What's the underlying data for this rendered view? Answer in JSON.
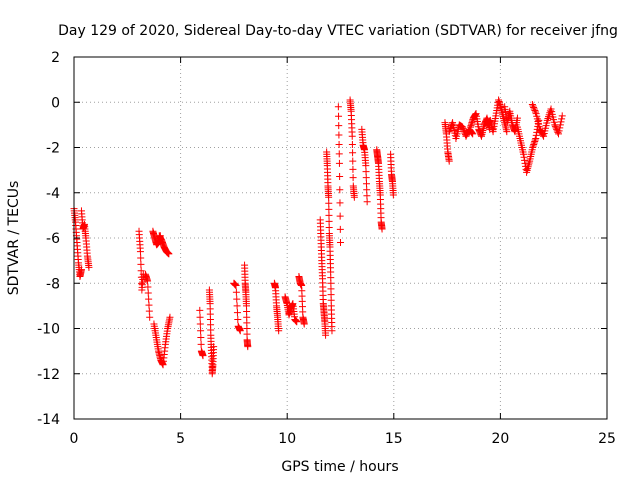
{
  "chart_data": {
    "type": "scatter",
    "title": "Day 129 of 2020, Sidereal Day-to-day VTEC variation (SDTVAR) for receiver jfng",
    "xlabel": "GPS time / hours",
    "ylabel": "SDTVAR / TECUs",
    "xlim": [
      0,
      25
    ],
    "ylim": [
      -14,
      2
    ],
    "xticks": [
      0,
      5,
      10,
      15,
      20,
      25
    ],
    "yticks": [
      2,
      0,
      -2,
      -4,
      -6,
      -8,
      -10,
      -12,
      -14
    ],
    "grid": true,
    "marker": "+",
    "colors": {
      "series": "#ff0000",
      "grid": "#a0a0a0",
      "axes": "#000000"
    },
    "series": [
      {
        "name": "SDTVAR",
        "segments": [
          {
            "x0": 0.0,
            "x1": 0.35,
            "y": [
              -4.7,
              -5.3,
              -6.2,
              -7.1,
              -7.7,
              -7.4
            ]
          },
          {
            "x0": 0.35,
            "x1": 0.7,
            "y": [
              -4.8,
              -5.6,
              -5.4,
              -6.0,
              -6.8,
              -7.3
            ]
          },
          {
            "x0": 3.05,
            "x1": 3.25,
            "y": [
              -5.7,
              -6.6,
              -8.3,
              -7.6
            ]
          },
          {
            "x0": 3.35,
            "x1": 3.55,
            "y": [
              -7.6,
              -7.9,
              -9.5
            ]
          },
          {
            "x0": 3.7,
            "x1": 4.05,
            "y": [
              -5.7,
              -6.0,
              -6.3,
              -6.2,
              -5.9
            ]
          },
          {
            "x0": 4.0,
            "x1": 4.45,
            "y": [
              -5.9,
              -6.1,
              -6.4,
              -6.6,
              -6.7
            ]
          },
          {
            "x0": 3.75,
            "x1": 4.5,
            "y": [
              -9.8,
              -10.4,
              -11.0,
              -11.4,
              -11.6,
              -10.7,
              -10.0,
              -9.5
            ]
          },
          {
            "x0": 5.9,
            "x1": 6.05,
            "y": [
              -9.2,
              -11.0,
              -11.2
            ]
          },
          {
            "x0": 6.35,
            "x1": 6.55,
            "y": [
              -8.3,
              -8.9,
              -10.3,
              -11.1,
              -12.0,
              -11.6,
              -10.8
            ]
          },
          {
            "x0": 7.5,
            "x1": 7.8,
            "y": [
              -8.0,
              -8.1,
              -9.9,
              -10.1
            ]
          },
          {
            "x0": 8.0,
            "x1": 8.15,
            "y": [
              -7.2,
              -8.0,
              -8.4,
              -9.0,
              -10.5,
              -10.8
            ]
          },
          {
            "x0": 9.4,
            "x1": 9.6,
            "y": [
              -8.0,
              -8.2,
              -9.0,
              -9.5,
              -10.1
            ]
          },
          {
            "x0": 9.9,
            "x1": 10.45,
            "y": [
              -8.6,
              -8.9,
              -9.4,
              -9.1,
              -8.9,
              -9.6,
              -9.7
            ]
          },
          {
            "x0": 10.55,
            "x1": 10.8,
            "y": [
              -7.7,
              -8.0,
              -8.1,
              -9.5,
              -9.8
            ]
          },
          {
            "x0": 11.55,
            "x1": 11.8,
            "y": [
              -5.2,
              -6.1,
              -7.0,
              -7.8,
              -8.9,
              -9.3,
              -9.7,
              -10.3
            ]
          },
          {
            "x0": 11.85,
            "x1": 12.1,
            "y": [
              -2.2,
              -2.8,
              -3.7,
              -4.2,
              -5.8,
              -6.4,
              -7.5,
              -9.0,
              -10.1
            ]
          },
          {
            "x0": 12.4,
            "x1": 12.5,
            "y": [
              -0.2,
              -2.7,
              -6.2
            ]
          },
          {
            "x0": 12.95,
            "x1": 13.15,
            "y": [
              0.1,
              -0.4,
              -1.5,
              -3.7,
              -4.2
            ]
          },
          {
            "x0": 13.5,
            "x1": 13.75,
            "y": [
              -1.2,
              -1.9,
              -2.1,
              -2.8,
              -4.4
            ]
          },
          {
            "x0": 14.2,
            "x1": 14.45,
            "y": [
              -2.1,
              -2.4,
              -2.7,
              -3.5,
              -4.1,
              -5.3,
              -5.6
            ]
          },
          {
            "x0": 14.85,
            "x1": 14.98,
            "y": [
              -2.3,
              -3.2,
              -3.5,
              -4.1
            ]
          },
          {
            "x0": 17.4,
            "x1": 17.6,
            "y": [
              -0.9,
              -1.4,
              -2.2,
              -2.6
            ]
          },
          {
            "x0": 17.6,
            "x1": 18.7,
            "y": [
              -1.3,
              -0.9,
              -1.6,
              -1.0,
              -1.1,
              -1.5,
              -1.2,
              -1.4
            ]
          },
          {
            "x0": 18.6,
            "x1": 19.5,
            "y": [
              -1.1,
              -0.7,
              -0.5,
              -1.2,
              -1.5,
              -1.0,
              -0.7,
              -1.2
            ]
          },
          {
            "x0": 19.4,
            "x1": 20.3,
            "y": [
              -1.0,
              -0.8,
              -1.3,
              -0.6,
              0.1,
              -0.3,
              -0.8,
              -1.3
            ]
          },
          {
            "x0": 20.2,
            "x1": 20.8,
            "y": [
              -0.2,
              -0.9,
              -0.4,
              -1.0,
              -1.3,
              -0.7
            ]
          },
          {
            "x0": 20.8,
            "x1": 21.8,
            "y": [
              -1.1,
              -1.7,
              -2.3,
              -3.1,
              -2.6,
              -2.0,
              -1.6,
              -0.8
            ]
          },
          {
            "x0": 21.5,
            "x1": 22.9,
            "y": [
              -0.1,
              -0.5,
              -1.2,
              -1.5,
              -0.8,
              -0.3,
              -1.0,
              -1.4,
              -0.6
            ]
          }
        ]
      }
    ]
  }
}
